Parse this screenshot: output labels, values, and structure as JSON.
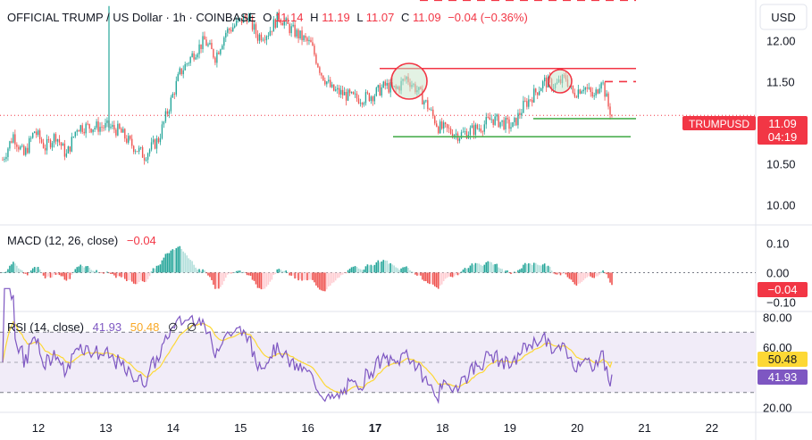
{
  "header": {
    "symbol_text": "OFFICIAL TRUMP / US Dollar · 1h · COINBASE",
    "open_label": "O",
    "open_value": "11.14",
    "high_label": "H",
    "high_value": "11.19",
    "low_label": "L",
    "low_value": "11.07",
    "close_label": "C",
    "close_value": "11.09",
    "change_text": "−0.04 (−0.36%)"
  },
  "currency_label": "USD",
  "price_tag": {
    "ticker": "TRUMPUSD",
    "price": "11.09",
    "countdown": "04:19"
  },
  "macd": {
    "label": "MACD (12, 26, close)",
    "value": "−0.04"
  },
  "rsi": {
    "label": "RSI (14, close)",
    "value": "41.93",
    "ma_value": "50.48",
    "extra1": "∅",
    "extra2": "∅"
  },
  "colors": {
    "up": "#26a69a",
    "down": "#ef5350",
    "resistance": "#f23645",
    "support": "#4caf50",
    "rsi_line": "#7e57c2",
    "rsi_ma": "#fdd835",
    "rsi_band": "#ede7f6",
    "macd_up_light": "#b2dfdb",
    "macd_down_light": "#ffcdd2"
  },
  "chart_data": {
    "type": "candlestick",
    "x_tick_labels": [
      "12",
      "13",
      "14",
      "15",
      "16",
      "17",
      "18",
      "19",
      "20",
      "21",
      "22"
    ],
    "price_axis": {
      "ticks": [
        "12.00",
        "11.50",
        "11.00",
        "10.50",
        "10.00"
      ],
      "ylim": [
        9.8,
        12.45
      ]
    },
    "macd_axis": {
      "ticks": [
        "0.10",
        "0.00",
        "−0.10"
      ],
      "ylim": [
        -0.12,
        0.15
      ]
    },
    "rsi_axis": {
      "ticks": [
        "80.00",
        "60.00",
        "20.00"
      ],
      "ylim": [
        18,
        82
      ]
    },
    "resistance_levels": [
      11.66
    ],
    "support_levels": [
      11.05,
      10.83
    ],
    "dashed_levels": [
      12.49,
      11.5
    ],
    "rsi_bands": [
      30,
      70
    ]
  }
}
